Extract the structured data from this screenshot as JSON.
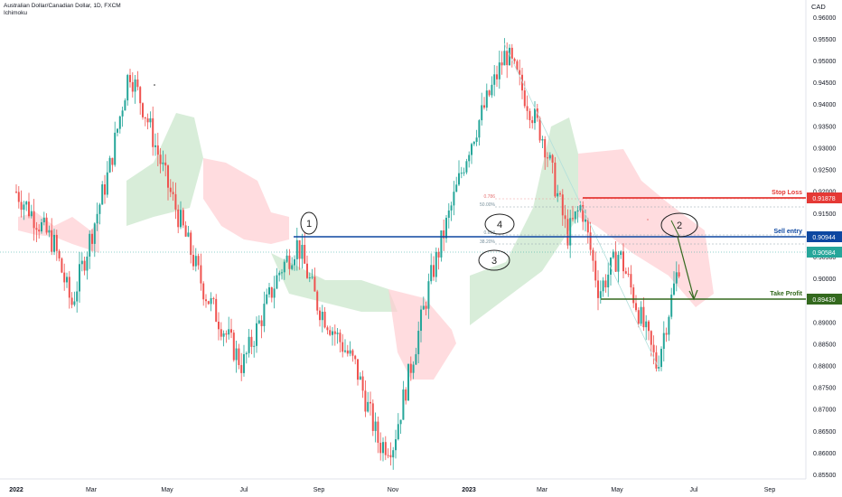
{
  "header": {
    "symbol_title": "Australian Dollar/Canadian Dollar, 1D, FXCM",
    "indicator": "Ichimoku"
  },
  "price_axis": {
    "currency": "CAD",
    "ticks": [
      "0.96000",
      "0.95500",
      "0.95000",
      "0.94500",
      "0.94000",
      "0.93500",
      "0.93000",
      "0.92500",
      "0.92000",
      "0.91500",
      "0.91000",
      "0.90500",
      "0.90000",
      "0.89500",
      "0.89000",
      "0.88500",
      "0.88000",
      "0.87500",
      "0.87000",
      "0.86500",
      "0.86000",
      "0.85500"
    ]
  },
  "time_axis": {
    "labels": [
      {
        "text": "2022",
        "bold": true
      },
      {
        "text": "Mar",
        "bold": false
      },
      {
        "text": "May",
        "bold": false
      },
      {
        "text": "Jul",
        "bold": false
      },
      {
        "text": "Sep",
        "bold": false
      },
      {
        "text": "Nov",
        "bold": false
      },
      {
        "text": "2023",
        "bold": true
      },
      {
        "text": "Mar",
        "bold": false
      },
      {
        "text": "May",
        "bold": false
      },
      {
        "text": "Jul",
        "bold": false
      },
      {
        "text": "Sep",
        "bold": false
      }
    ]
  },
  "levels": [
    {
      "name": "Stop Loss",
      "price_label": "0.91878",
      "color": "#e53935"
    },
    {
      "name": "Sell entry",
      "price_label": "0.90944",
      "color": "#0d47a1"
    },
    {
      "name": "",
      "price_label": "0.90584",
      "color": "#26a69a"
    },
    {
      "name": "Take Profit",
      "price_label": "0.89430",
      "color": "#33691e"
    }
  ],
  "fib_labels": [
    "0.786",
    "50.00%",
    "0.618",
    "38.20%"
  ],
  "colors": {
    "up": "#26a69a",
    "down": "#ef5350",
    "kumo_bull": "#c8e6c9",
    "kumo_bear": "#ffcdd2",
    "axis_text": "#131722"
  },
  "annotations": [
    "1",
    "2",
    "3",
    "4"
  ],
  "chart_data": {
    "type": "candlestick",
    "title": "Australian Dollar/Canadian Dollar, 1D, FXCM",
    "ylabel": "CAD",
    "ylim": [
      0.852,
      0.964
    ],
    "x_labels": [
      "2022",
      "Mar",
      "May",
      "Jul",
      "Sep",
      "Nov",
      "2023",
      "Mar",
      "May",
      "Jul",
      "Sep"
    ],
    "price_path_approx": [
      {
        "x": "2022-01",
        "y": 0.92
      },
      {
        "x": "2022-02",
        "y": 0.908
      },
      {
        "x": "2022-02-15",
        "y": 0.894
      },
      {
        "x": "2022-03-15",
        "y": 0.925
      },
      {
        "x": "2022-04",
        "y": 0.948
      },
      {
        "x": "2022-04-15",
        "y": 0.937
      },
      {
        "x": "2022-05",
        "y": 0.922
      },
      {
        "x": "2022-06",
        "y": 0.897
      },
      {
        "x": "2022-07",
        "y": 0.88
      },
      {
        "x": "2022-08",
        "y": 0.902
      },
      {
        "x": "2022-08-15",
        "y": 0.908
      },
      {
        "x": "2022-09",
        "y": 0.894
      },
      {
        "x": "2022-10",
        "y": 0.88
      },
      {
        "x": "2022-10-20",
        "y": 0.862
      },
      {
        "x": "2022-11",
        "y": 0.862
      },
      {
        "x": "2022-12",
        "y": 0.9
      },
      {
        "x": "2023-01",
        "y": 0.93
      },
      {
        "x": "2023-02",
        "y": 0.952
      },
      {
        "x": "2023-03",
        "y": 0.932
      },
      {
        "x": "2023-03-20",
        "y": 0.91
      },
      {
        "x": "2023-04",
        "y": 0.917
      },
      {
        "x": "2023-04-15",
        "y": 0.897
      },
      {
        "x": "2023-05",
        "y": 0.906
      },
      {
        "x": "2023-06",
        "y": 0.88
      },
      {
        "x": "2023-06-20",
        "y": 0.905
      }
    ],
    "levels": [
      {
        "label": "Stop Loss",
        "y": 0.91878
      },
      {
        "label": "Sell entry",
        "y": 0.90944
      },
      {
        "label": "",
        "y": 0.90584
      },
      {
        "label": "Take Profit",
        "y": 0.8943
      }
    ]
  }
}
